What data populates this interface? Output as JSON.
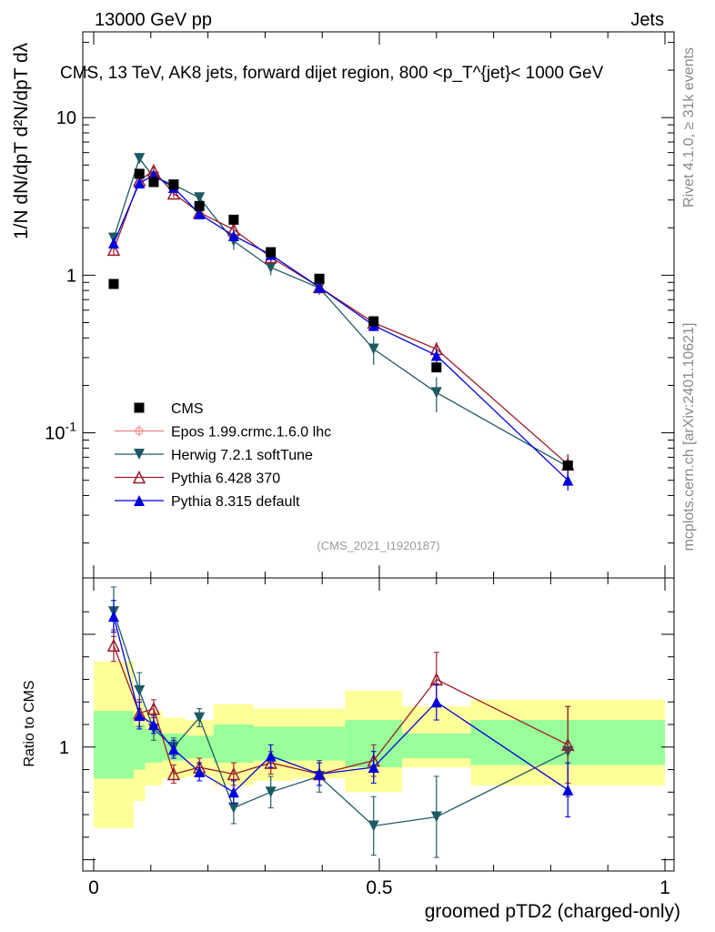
{
  "header": {
    "energy_label": "13000 GeV pp",
    "category_label": "Jets"
  },
  "side": {
    "rivet": "Rivet 4.1.0, ≥ 31k events",
    "mcplots": "mcplots.cern.ch [arXiv:2401.10621]"
  },
  "axes": {
    "ylabel_main": "1/N dN/dpT d²N/dpT dλ",
    "ylabel_ratio": "Ratio to CMS",
    "xlabel": "groomed pTD2 (charged-only)"
  },
  "chart_data": {
    "type": "scatter",
    "title": "CMS, 13 TeV, AK8 jets, forward dijet region, 800 <p_T^{jet}< 1000 GeV",
    "watermark": "(CMS_2021_I1920187)",
    "xlim": [
      0,
      1
    ],
    "ylim_main": [
      0.012,
      35
    ],
    "ylim_ratio": [
      0.45,
      1.75
    ],
    "x_ticks": [
      {
        "value": 0,
        "label": "0"
      },
      {
        "value": 0.5,
        "label": "0.5"
      },
      {
        "value": 1,
        "label": "1"
      }
    ],
    "y_ticks_main": [
      {
        "value": 0.1,
        "label": "10^{-1}"
      },
      {
        "value": 1,
        "label": "1"
      },
      {
        "value": 10,
        "label": "10"
      }
    ],
    "y_ticks_ratio": [
      {
        "value": 1,
        "label": "1"
      }
    ],
    "bin_edges": [
      0,
      0.07,
      0.09,
      0.12,
      0.16,
      0.21,
      0.28,
      0.35,
      0.44,
      0.54,
      0.66,
      1.0
    ],
    "data_band": [
      {
        "lo": 0.0,
        "hi": 0.07,
        "y1lo": 0.86,
        "y1hi": 1.16,
        "y2lo": 0.64,
        "y2hi": 1.38
      },
      {
        "lo": 0.07,
        "hi": 0.09,
        "y1lo": 0.9,
        "y1hi": 1.1,
        "y2lo": 0.76,
        "y2hi": 1.2
      },
      {
        "lo": 0.09,
        "hi": 0.12,
        "y1lo": 0.93,
        "y1hi": 1.08,
        "y2lo": 0.83,
        "y2hi": 1.16
      },
      {
        "lo": 0.12,
        "hi": 0.16,
        "y1lo": 0.94,
        "y1hi": 1.06,
        "y2lo": 0.86,
        "y2hi": 1.13
      },
      {
        "lo": 0.16,
        "hi": 0.21,
        "y1lo": 0.95,
        "y1hi": 1.05,
        "y2lo": 0.87,
        "y2hi": 1.12
      },
      {
        "lo": 0.21,
        "hi": 0.28,
        "y1lo": 0.93,
        "y1hi": 1.1,
        "y2lo": 0.83,
        "y2hi": 1.19
      },
      {
        "lo": 0.28,
        "hi": 0.35,
        "y1lo": 0.94,
        "y1hi": 1.09,
        "y2lo": 0.85,
        "y2hi": 1.17
      },
      {
        "lo": 0.35,
        "hi": 0.44,
        "y1lo": 0.94,
        "y1hi": 1.09,
        "y2lo": 0.86,
        "y2hi": 1.17
      },
      {
        "lo": 0.44,
        "hi": 0.54,
        "y1lo": 0.91,
        "y1hi": 1.12,
        "y2lo": 0.8,
        "y2hi": 1.25
      },
      {
        "lo": 0.54,
        "hi": 0.66,
        "y1lo": 0.95,
        "y1hi": 1.06,
        "y2lo": 0.91,
        "y2hi": 1.18
      },
      {
        "lo": 0.66,
        "hi": 1.0,
        "y1lo": 0.92,
        "y1hi": 1.12,
        "y2lo": 0.83,
        "y2hi": 1.21
      }
    ],
    "series": [
      {
        "name": "CMS",
        "color": "#000000",
        "marker": "square",
        "points": [
          {
            "x": 0.035,
            "y": 0.88
          },
          {
            "x": 0.08,
            "y": 4.4
          },
          {
            "x": 0.105,
            "y": 3.9
          },
          {
            "x": 0.14,
            "y": 3.75
          },
          {
            "x": 0.185,
            "y": 2.75
          },
          {
            "x": 0.245,
            "y": 2.25
          },
          {
            "x": 0.31,
            "y": 1.4
          },
          {
            "x": 0.395,
            "y": 0.95
          },
          {
            "x": 0.49,
            "y": 0.51
          },
          {
            "x": 0.6,
            "y": 0.26
          },
          {
            "x": 0.83,
            "y": 0.062
          }
        ]
      },
      {
        "name": "Epos 1.99.crmc.1.6.0 lhc",
        "color": "#f08080",
        "marker": "crosshair",
        "points": [],
        "ratio": []
      },
      {
        "name": "Herwig 7.2.1 softTune",
        "color": "#1e5a64",
        "marker": "triangle-down",
        "points": [
          {
            "x": 0.035,
            "y": 1.72,
            "err": 0.15
          },
          {
            "x": 0.08,
            "y": 5.5,
            "err": 0.4
          },
          {
            "x": 0.105,
            "y": 4.2,
            "err": 0.3
          },
          {
            "x": 0.14,
            "y": 3.75,
            "err": 0.25
          },
          {
            "x": 0.185,
            "y": 3.1,
            "err": 0.2
          },
          {
            "x": 0.245,
            "y": 1.65,
            "err": 0.2
          },
          {
            "x": 0.31,
            "y": 1.12,
            "err": 0.12
          },
          {
            "x": 0.395,
            "y": 0.83,
            "err": 0.08
          },
          {
            "x": 0.49,
            "y": 0.34,
            "err": 0.07
          },
          {
            "x": 0.6,
            "y": 0.18,
            "err": 0.045
          },
          {
            "x": 0.83,
            "y": 0.061,
            "err": 0.012
          }
        ],
        "ratio": [
          {
            "x": 0.035,
            "y": 1.6,
            "err": 0.11
          },
          {
            "x": 0.08,
            "y": 1.25,
            "err": 0.08
          },
          {
            "x": 0.105,
            "y": 1.08,
            "err": 0.05
          },
          {
            "x": 0.14,
            "y": 1.0,
            "err": 0.04
          },
          {
            "x": 0.185,
            "y": 1.13,
            "err": 0.04
          },
          {
            "x": 0.245,
            "y": 0.73,
            "err": 0.07
          },
          {
            "x": 0.31,
            "y": 0.8,
            "err": 0.07
          },
          {
            "x": 0.395,
            "y": 0.87,
            "err": 0.07
          },
          {
            "x": 0.49,
            "y": 0.65,
            "err": 0.13
          },
          {
            "x": 0.6,
            "y": 0.69,
            "err": 0.18
          },
          {
            "x": 0.83,
            "y": 0.98,
            "err": 0.2
          }
        ]
      },
      {
        "name": "Pythia 6.428 370",
        "color": "#9b1c2c",
        "marker": "triangle-up-open",
        "points": [
          {
            "x": 0.035,
            "y": 1.45,
            "err": 0.1
          },
          {
            "x": 0.08,
            "y": 4.0,
            "err": 0.25
          },
          {
            "x": 0.105,
            "y": 4.6,
            "err": 0.3
          },
          {
            "x": 0.14,
            "y": 3.3,
            "err": 0.2
          },
          {
            "x": 0.185,
            "y": 2.5,
            "err": 0.15
          },
          {
            "x": 0.245,
            "y": 1.95,
            "err": 0.15
          },
          {
            "x": 0.31,
            "y": 1.3,
            "err": 0.1
          },
          {
            "x": 0.395,
            "y": 0.84,
            "err": 0.06
          },
          {
            "x": 0.49,
            "y": 0.5,
            "err": 0.04
          },
          {
            "x": 0.6,
            "y": 0.34,
            "err": 0.035
          },
          {
            "x": 0.83,
            "y": 0.063,
            "err": 0.01
          }
        ],
        "ratio": [
          {
            "x": 0.035,
            "y": 1.45,
            "err": 0.07
          },
          {
            "x": 0.08,
            "y": 1.15,
            "err": 0.06
          },
          {
            "x": 0.105,
            "y": 1.17,
            "err": 0.04
          },
          {
            "x": 0.14,
            "y": 0.88,
            "err": 0.04
          },
          {
            "x": 0.185,
            "y": 0.91,
            "err": 0.04
          },
          {
            "x": 0.245,
            "y": 0.88,
            "err": 0.05
          },
          {
            "x": 0.31,
            "y": 0.93,
            "err": 0.05
          },
          {
            "x": 0.395,
            "y": 0.88,
            "err": 0.05
          },
          {
            "x": 0.49,
            "y": 0.94,
            "err": 0.07
          },
          {
            "x": 0.6,
            "y": 1.3,
            "err": 0.12
          },
          {
            "x": 0.83,
            "y": 1.01,
            "err": 0.17
          }
        ]
      },
      {
        "name": "Pythia 8.315 default",
        "color": "#0000dd",
        "marker": "triangle-up",
        "points": [
          {
            "x": 0.035,
            "y": 1.6,
            "err": 0.1
          },
          {
            "x": 0.08,
            "y": 3.85,
            "err": 0.25
          },
          {
            "x": 0.105,
            "y": 4.3,
            "err": 0.3
          },
          {
            "x": 0.14,
            "y": 3.6,
            "err": 0.2
          },
          {
            "x": 0.185,
            "y": 2.45,
            "err": 0.15
          },
          {
            "x": 0.245,
            "y": 1.78,
            "err": 0.12
          },
          {
            "x": 0.31,
            "y": 1.35,
            "err": 0.1
          },
          {
            "x": 0.395,
            "y": 0.84,
            "err": 0.06
          },
          {
            "x": 0.49,
            "y": 0.48,
            "err": 0.04
          },
          {
            "x": 0.6,
            "y": 0.31,
            "err": 0.03
          },
          {
            "x": 0.83,
            "y": 0.05,
            "err": 0.007
          }
        ],
        "ratio": [
          {
            "x": 0.035,
            "y": 1.58,
            "err": 0.07
          },
          {
            "x": 0.08,
            "y": 1.14,
            "err": 0.06
          },
          {
            "x": 0.105,
            "y": 1.1,
            "err": 0.04
          },
          {
            "x": 0.14,
            "y": 0.99,
            "err": 0.04
          },
          {
            "x": 0.185,
            "y": 0.89,
            "err": 0.04
          },
          {
            "x": 0.245,
            "y": 0.8,
            "err": 0.05
          },
          {
            "x": 0.31,
            "y": 0.96,
            "err": 0.05
          },
          {
            "x": 0.395,
            "y": 0.88,
            "err": 0.05
          },
          {
            "x": 0.49,
            "y": 0.91,
            "err": 0.07
          },
          {
            "x": 0.6,
            "y": 1.2,
            "err": 0.08
          },
          {
            "x": 0.83,
            "y": 0.81,
            "err": 0.12
          }
        ]
      }
    ]
  }
}
